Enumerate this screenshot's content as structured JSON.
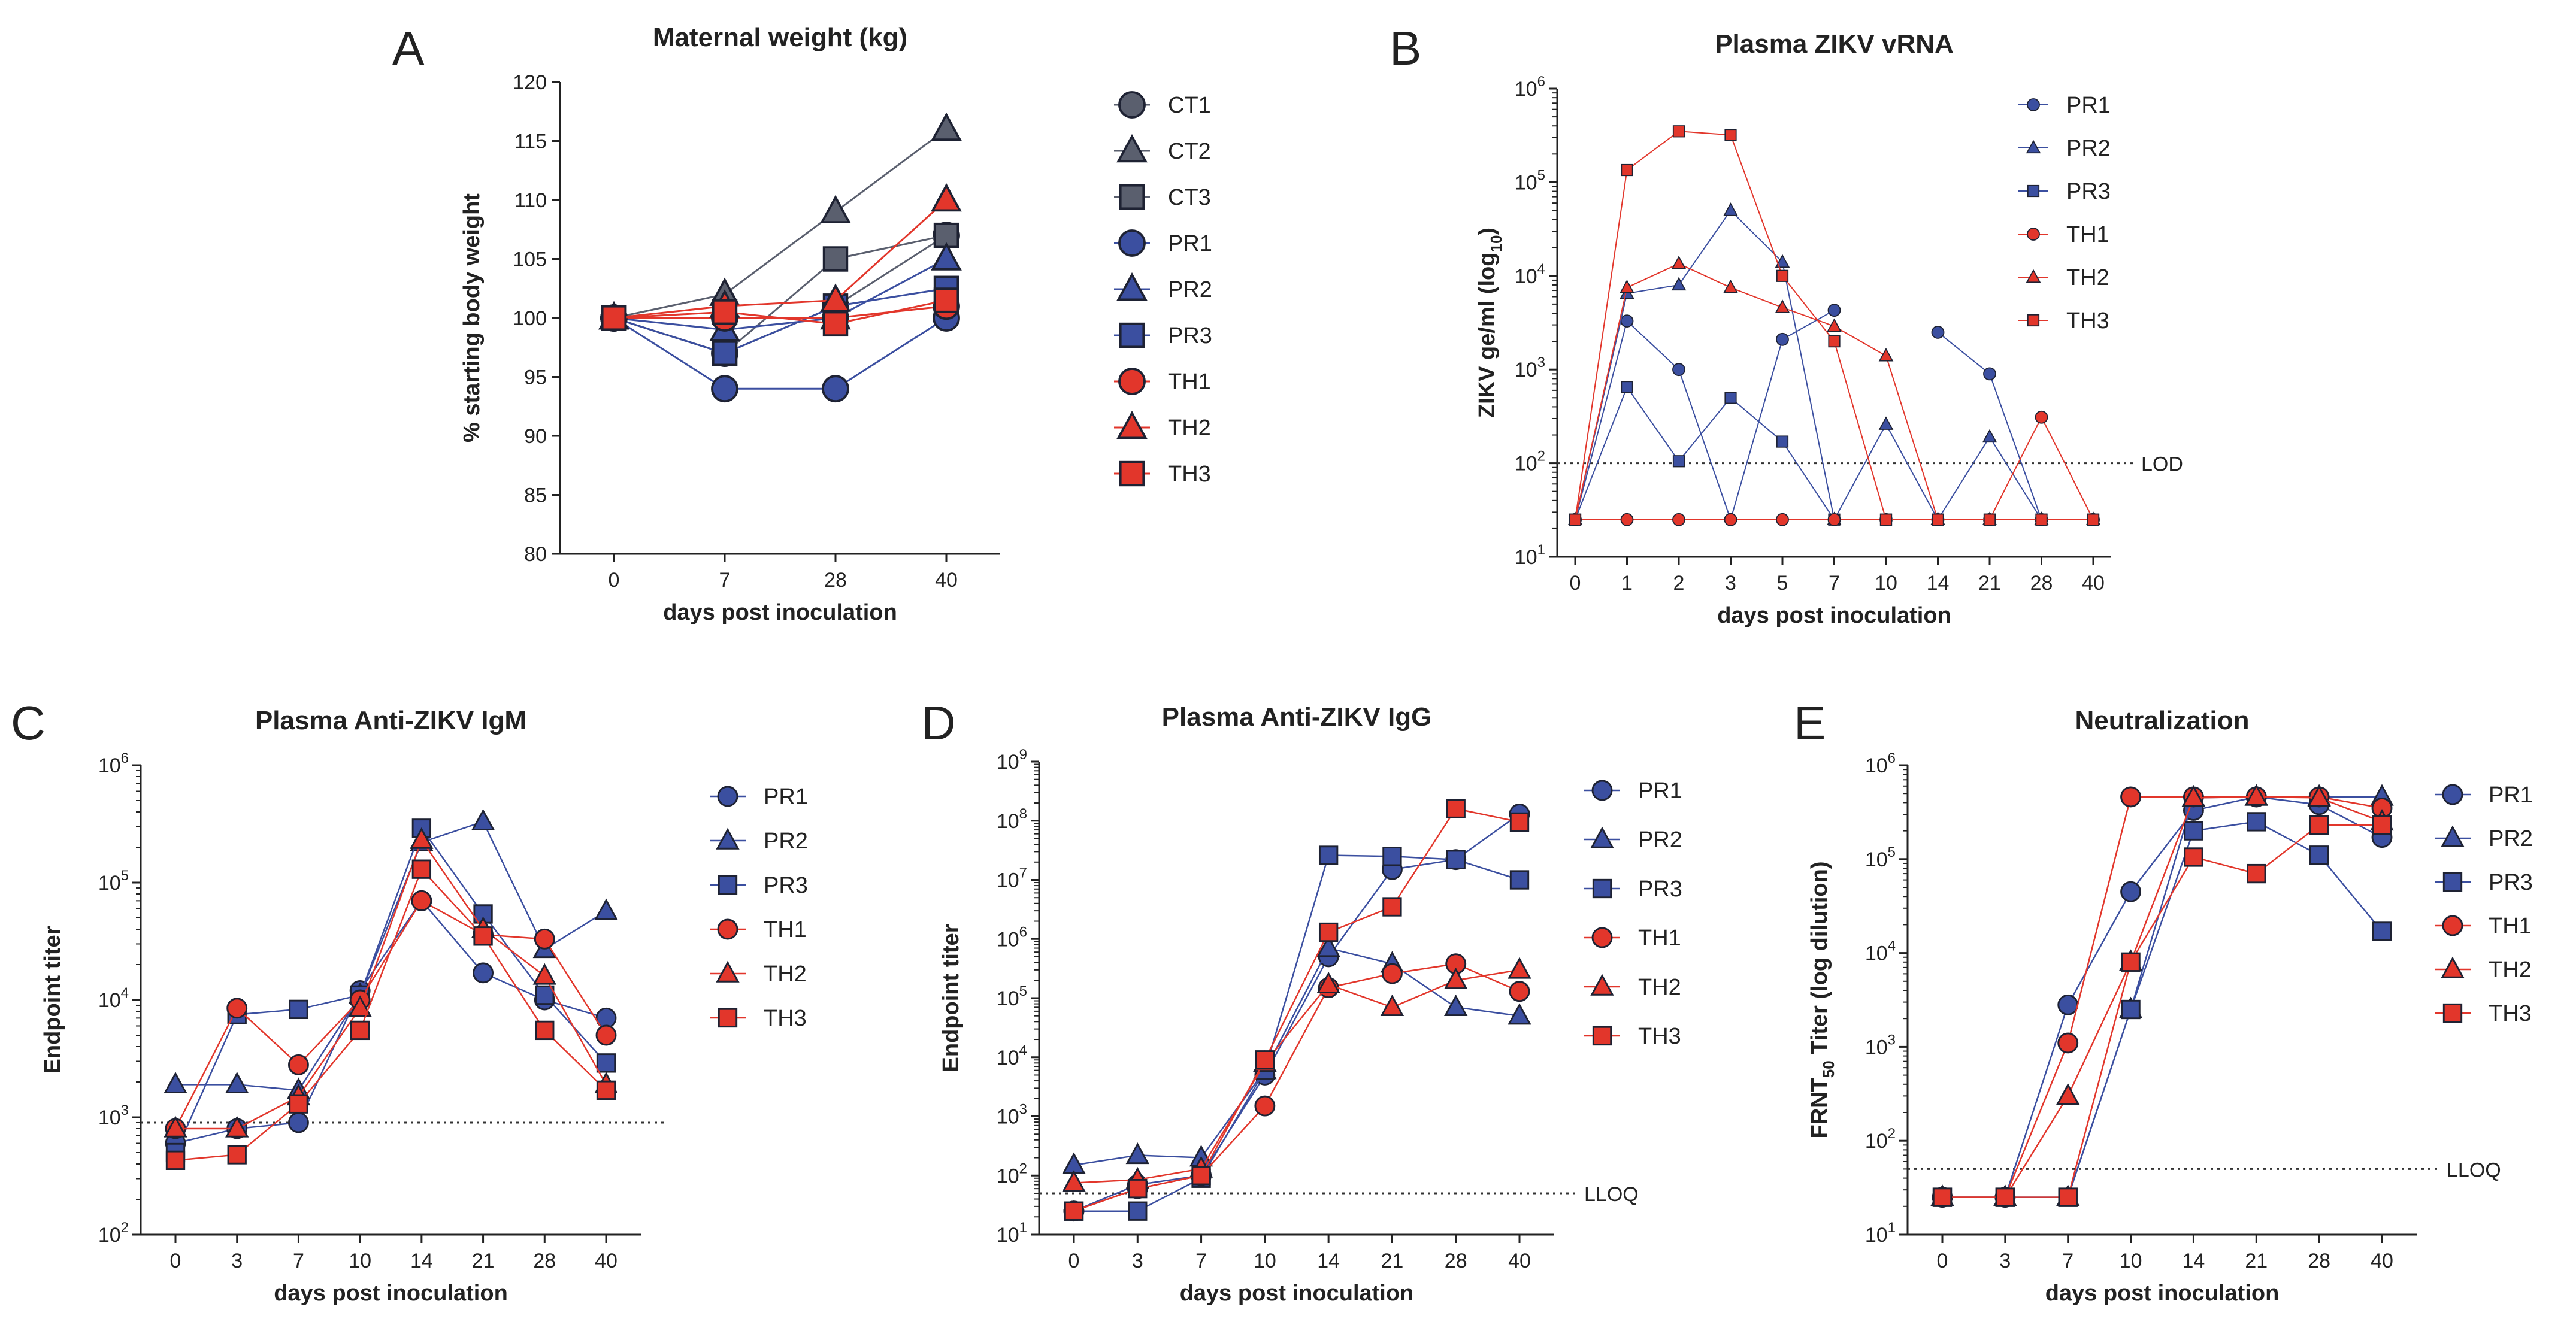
{
  "colors": {
    "blue": "#3b4fa0",
    "red": "#e2362b",
    "gray": "#5a5f6e",
    "purple": "#7a4a9a",
    "axis": "#222222"
  },
  "chart_data": [
    {
      "id": "A",
      "type": "line",
      "title": "Maternal weight (kg)",
      "xlabel": "days post inoculation",
      "ylabel": "% starting body weight",
      "categories": [
        "0",
        "7",
        "28",
        "40"
      ],
      "yscale": "linear",
      "ylim": [
        80,
        120
      ],
      "yticks": [
        "80",
        "85",
        "90",
        "95",
        "100",
        "105",
        "110",
        "115",
        "120"
      ],
      "legend": "right",
      "series": [
        {
          "name": "CT1",
          "color": "gray",
          "marker": "circle",
          "values": [
            100,
            97,
            101,
            107
          ]
        },
        {
          "name": "CT2",
          "color": "gray",
          "marker": "triangle",
          "values": [
            100,
            102,
            109,
            116
          ]
        },
        {
          "name": "CT3",
          "color": "gray",
          "marker": "square",
          "values": [
            100,
            97,
            105,
            107
          ]
        },
        {
          "name": "PR1",
          "color": "blue",
          "marker": "circle",
          "values": [
            100,
            94,
            94,
            100
          ]
        },
        {
          "name": "PR2",
          "color": "blue",
          "marker": "triangle",
          "values": [
            100,
            99,
            100,
            105
          ]
        },
        {
          "name": "PR3",
          "color": "blue",
          "marker": "square",
          "values": [
            100,
            97,
            101,
            102.5
          ]
        },
        {
          "name": "TH1",
          "color": "red",
          "marker": "circle",
          "values": [
            100,
            100,
            100,
            101
          ]
        },
        {
          "name": "TH2",
          "color": "red",
          "marker": "triangle",
          "values": [
            100,
            101,
            101.5,
            110
          ]
        },
        {
          "name": "TH3",
          "color": "red",
          "marker": "square",
          "values": [
            100,
            100.5,
            99.5,
            101.5
          ]
        }
      ]
    },
    {
      "id": "B",
      "type": "line",
      "title": "Plasma ZIKV vRNA",
      "xlabel": "days post inoculation",
      "ylabel": "ZIKV ge/ml (log",
      "ylabel_sub": "10",
      "ylabel_end": ")",
      "categories": [
        "0",
        "1",
        "2",
        "3",
        "5",
        "7",
        "10",
        "14",
        "21",
        "28",
        "40"
      ],
      "yscale": "log",
      "ylim": [
        10,
        1000000
      ],
      "ytick_base": "10",
      "ytick_exps": [
        "1",
        "2",
        "3",
        "4",
        "5",
        "6"
      ],
      "refline": {
        "value": 100,
        "label": "LOD"
      },
      "legend": "right",
      "series": [
        {
          "name": "PR1",
          "color": "blue",
          "marker": "circle",
          "values": [
            25,
            3300,
            1000,
            25,
            2100,
            4300,
            null,
            2500,
            900,
            25,
            25
          ]
        },
        {
          "name": "PR2",
          "color": "blue",
          "marker": "triangle",
          "values": [
            25,
            6500,
            8000,
            50000,
            14000,
            25,
            260,
            25,
            190,
            25,
            25
          ]
        },
        {
          "name": "PR3",
          "color": "blue",
          "marker": "square",
          "values": [
            25,
            650,
            105,
            500,
            170,
            25,
            25,
            25,
            25,
            25,
            25
          ]
        },
        {
          "name": "TH1",
          "color": "red",
          "marker": "circle",
          "values": [
            25,
            25,
            25,
            25,
            25,
            25,
            25,
            25,
            25,
            310,
            25
          ]
        },
        {
          "name": "TH2",
          "color": "red",
          "marker": "triangle",
          "values": [
            25,
            7500,
            13500,
            7500,
            4600,
            2900,
            1400,
            25,
            25,
            25,
            25
          ]
        },
        {
          "name": "TH3",
          "color": "red",
          "marker": "square",
          "values": [
            25,
            135000,
            350000,
            320000,
            10000,
            2000,
            25,
            25,
            25,
            25,
            25
          ]
        }
      ]
    },
    {
      "id": "C",
      "type": "line",
      "title": "Plasma Anti-ZIKV IgM",
      "xlabel": "days post inoculation",
      "ylabel": "Endpoint titer",
      "categories": [
        "0",
        "3",
        "7",
        "10",
        "14",
        "21",
        "28",
        "40"
      ],
      "yscale": "log",
      "ylim": [
        100,
        1000000
      ],
      "ytick_base": "10",
      "ytick_exps": [
        "2",
        "3",
        "4",
        "5",
        "6"
      ],
      "refline": {
        "value": 900,
        "label": ""
      },
      "legend": "right",
      "series": [
        {
          "name": "PR1",
          "color": "blue",
          "marker": "circle",
          "values": [
            600,
            800,
            900,
            12000,
            70000,
            17000,
            10000,
            7000
          ]
        },
        {
          "name": "PR2",
          "color": "blue",
          "marker": "triangle",
          "values": [
            1900,
            1900,
            1700,
            11000,
            220000,
            330000,
            27000,
            57000
          ]
        },
        {
          "name": "PR3",
          "color": "blue",
          "marker": "square",
          "values": [
            500,
            7500,
            8300,
            11000,
            290000,
            54000,
            11000,
            2900
          ]
        },
        {
          "name": "TH1",
          "color": "red",
          "marker": "circle",
          "values": [
            800,
            8500,
            2800,
            10000,
            70000,
            36000,
            33000,
            5000
          ]
        },
        {
          "name": "TH2",
          "color": "red",
          "marker": "triangle",
          "values": [
            800,
            800,
            1500,
            8500,
            230000,
            40000,
            16000,
            1900
          ]
        },
        {
          "name": "TH3",
          "color": "red",
          "marker": "square",
          "values": [
            430,
            480,
            1300,
            5500,
            130000,
            35000,
            5500,
            1700
          ]
        }
      ]
    },
    {
      "id": "D",
      "type": "line",
      "title": "Plasma Anti-ZIKV IgG",
      "xlabel": "days post inoculation",
      "ylabel": "Endpoint titer",
      "categories": [
        "0",
        "3",
        "7",
        "10",
        "14",
        "21",
        "28",
        "40"
      ],
      "yscale": "log",
      "ylim": [
        10,
        1000000000
      ],
      "ytick_base": "10",
      "ytick_exps": [
        "1",
        "2",
        "3",
        "4",
        "5",
        "6",
        "7",
        "8",
        "9"
      ],
      "refline": {
        "value": 50,
        "label": "LLOQ"
      },
      "legend": "right",
      "series": [
        {
          "name": "PR1",
          "color": "blue",
          "marker": "circle",
          "values": [
            25,
            70,
            100,
            5000,
            500000,
            15000000,
            22000000,
            130000000
          ]
        },
        {
          "name": "PR2",
          "color": "blue",
          "marker": "triangle",
          "values": [
            150,
            220,
            200,
            6000,
            700000,
            380000,
            70000,
            50000
          ]
        },
        {
          "name": "PR3",
          "color": "blue",
          "marker": "square",
          "values": [
            25,
            25,
            90,
            6000,
            26000000,
            25000000,
            22000000,
            10000000
          ]
        },
        {
          "name": "TH1",
          "color": "red",
          "marker": "circle",
          "values": [
            25,
            60,
            100,
            1500,
            150000,
            260000,
            380000,
            130000
          ]
        },
        {
          "name": "TH2",
          "color": "red",
          "marker": "triangle",
          "values": [
            75,
            85,
            130,
            8000,
            170000,
            70000,
            200000,
            300000
          ]
        },
        {
          "name": "TH3",
          "color": "red",
          "marker": "square",
          "values": [
            25,
            60,
            100,
            9000,
            1300000,
            3500000,
            160000000,
            95000000
          ]
        }
      ]
    },
    {
      "id": "E",
      "type": "line",
      "title": "Neutralization",
      "xlabel": "days post inoculation",
      "ylabel": "FRNT",
      "ylabel_sub": "50",
      "ylabel_end": " Titer (log dilution)",
      "categories": [
        "0",
        "3",
        "7",
        "10",
        "14",
        "21",
        "28",
        "40"
      ],
      "yscale": "log",
      "ylim": [
        10,
        1000000
      ],
      "ytick_base": "10",
      "ytick_exps": [
        "1",
        "2",
        "3",
        "4",
        "5",
        "6"
      ],
      "refline": {
        "value": 50,
        "label": "LLOQ"
      },
      "legend": "right",
      "series": [
        {
          "name": "PR1",
          "color": "blue",
          "marker": "circle",
          "values": [
            25,
            25,
            2800,
            45000,
            330000,
            460000,
            380000,
            170000
          ]
        },
        {
          "name": "PR2",
          "color": "blue",
          "marker": "triangle",
          "values": [
            25,
            25,
            25,
            2500,
            450000,
            460000,
            460000,
            460000
          ]
        },
        {
          "name": "PR3",
          "color": "blue",
          "marker": "square",
          "values": [
            25,
            25,
            25,
            2500,
            200000,
            250000,
            110000,
            17000
          ]
        },
        {
          "name": "TH1",
          "color": "red",
          "marker": "circle",
          "values": [
            25,
            25,
            1100,
            460000,
            460000,
            460000,
            460000,
            350000
          ]
        },
        {
          "name": "TH2",
          "color": "red",
          "marker": "triangle",
          "values": [
            25,
            25,
            300,
            8000,
            450000,
            460000,
            450000,
            250000
          ]
        },
        {
          "name": "TH3",
          "color": "red",
          "marker": "square",
          "values": [
            25,
            25,
            25,
            8000,
            105000,
            70000,
            230000,
            230000
          ]
        }
      ]
    }
  ]
}
